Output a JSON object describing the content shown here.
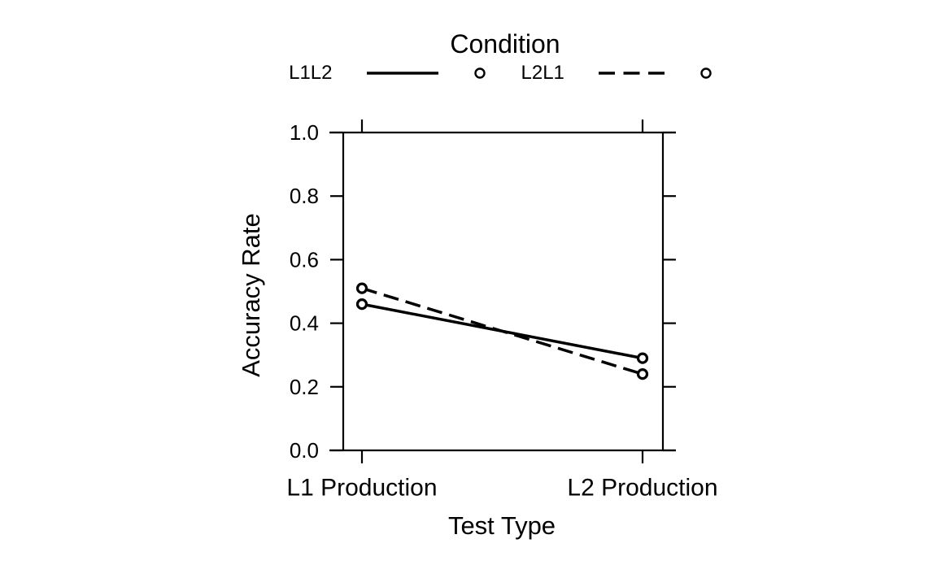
{
  "figure": {
    "background": "#ffffff",
    "foreground": "#000000"
  },
  "chart_data": {
    "type": "line",
    "legend": {
      "title": "Condition",
      "position": "top",
      "entries": [
        "L1L2",
        "L2L1"
      ]
    },
    "categories": [
      "L1 Production",
      "L2 Production"
    ],
    "series": [
      {
        "name": "L1L2",
        "line_style": "solid",
        "marker": "open-circle",
        "values": [
          0.46,
          0.29
        ]
      },
      {
        "name": "L2L1",
        "line_style": "dashed",
        "marker": "open-circle",
        "values": [
          0.51,
          0.24
        ]
      }
    ],
    "xlabel": "Test Type",
    "ylabel": "Accuracy Rate",
    "ylim": [
      0.0,
      1.0
    ],
    "yticks": [
      "0.0",
      "0.2",
      "0.4",
      "0.6",
      "0.8",
      "1.0"
    ],
    "grid": false
  }
}
